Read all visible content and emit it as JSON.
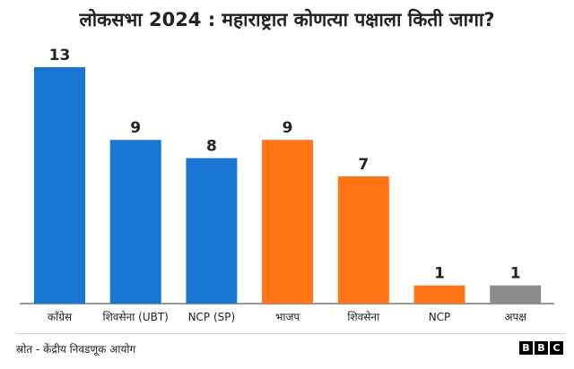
{
  "chart_data": {
    "type": "bar",
    "title": "लोकसभा 2024 : महाराष्ट्रात कोणत्या पक्षाला किती जागा?",
    "categories": [
      "कॉंग्रेस",
      "शिवसेना (UBT)",
      "NCP (SP)",
      "भाजप",
      "शिवसेना",
      "NCP",
      "अपक्ष"
    ],
    "values": [
      13,
      9,
      8,
      9,
      7,
      1,
      1
    ],
    "colors": [
      "#1976d2",
      "#1976d2",
      "#1976d2",
      "#ff7518",
      "#ff7518",
      "#ff7518",
      "#8c8c8c"
    ],
    "ylim": [
      0,
      13
    ],
    "grid": false,
    "xlabel": "",
    "ylabel": ""
  },
  "footer": {
    "source": "स्रोत - केंद्रीय निवडणूक आयोग",
    "logo": [
      "B",
      "B",
      "C"
    ]
  }
}
